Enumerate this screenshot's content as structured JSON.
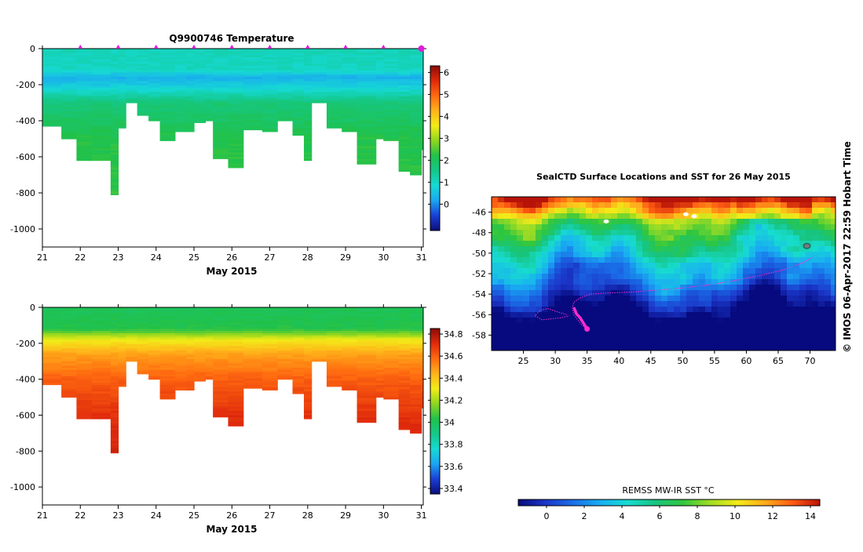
{
  "colors": {
    "profile_ramp": [
      "#0b0c7a",
      "#1a3fd6",
      "#1aa6f0",
      "#16d9d4",
      "#14c889",
      "#21c14a",
      "#8fd61f",
      "#f2ec18",
      "#ffb21a",
      "#ff6a10",
      "#e02a0c",
      "#8b0c07"
    ],
    "sst_ramp": [
      "#060a7e",
      "#1b36c8",
      "#1a6fe8",
      "#19aef2",
      "#17dcd0",
      "#17c47e",
      "#2fc63f",
      "#9fdc24",
      "#f3ea18",
      "#ffab1c",
      "#ff5b12",
      "#b71308"
    ],
    "track": "#ff2bd0",
    "marker": "#e01ad8"
  },
  "chart_data": [
    {
      "type": "heatmap",
      "title": "Q9900746  Temperature",
      "xlabel": "May 2015",
      "ylabel": "",
      "xlim": [
        21,
        31.05
      ],
      "ylim": [
        -1100,
        0
      ],
      "xticks": [
        21,
        22,
        23,
        24,
        25,
        26,
        27,
        28,
        29,
        30,
        31
      ],
      "yticks": [
        0,
        -200,
        -400,
        -600,
        -800,
        -1000
      ],
      "colorbar": {
        "range": [
          -1.2,
          6.3
        ],
        "ticks": [
          0,
          1,
          2,
          3,
          4,
          5,
          6
        ]
      },
      "profile_times": [
        21.0,
        21.5,
        21.9,
        22.3,
        22.8,
        23.0,
        23.2,
        23.5,
        23.8,
        24.1,
        24.5,
        24.8,
        25.0,
        25.3,
        25.5,
        25.9,
        26.3,
        26.8,
        27.2,
        27.6,
        27.9,
        28.1,
        28.5,
        28.9,
        29.3,
        29.8,
        30.0,
        30.4,
        30.7,
        31.0
      ],
      "profile_depths": [
        430,
        500,
        620,
        620,
        810,
        440,
        300,
        370,
        400,
        510,
        460,
        460,
        410,
        400,
        610,
        660,
        450,
        460,
        400,
        480,
        620,
        300,
        440,
        460,
        640,
        500,
        510,
        680,
        700,
        560
      ],
      "surface_markers": [
        22,
        23,
        24,
        25,
        26,
        27,
        28,
        29,
        30,
        31
      ],
      "temperature_profile": [
        {
          "depth": 0,
          "value": 1.1
        },
        {
          "depth": 120,
          "value": 1.0
        },
        {
          "depth": 160,
          "value": 0.3
        },
        {
          "depth": 220,
          "value": 0.8
        },
        {
          "depth": 300,
          "value": 1.7
        },
        {
          "depth": 500,
          "value": 2.2
        },
        {
          "depth": 820,
          "value": 2.3
        }
      ]
    },
    {
      "type": "heatmap",
      "title": "",
      "xlabel": "May 2015",
      "ylabel": "",
      "xlim": [
        21,
        31.05
      ],
      "ylim": [
        -1100,
        0
      ],
      "xticks": [
        21,
        22,
        23,
        24,
        25,
        26,
        27,
        28,
        29,
        30,
        31
      ],
      "yticks": [
        0,
        -200,
        -400,
        -600,
        -800,
        -1000
      ],
      "colorbar": {
        "range": [
          33.35,
          34.85
        ],
        "ticks": [
          33.4,
          33.6,
          33.8,
          34,
          34.2,
          34.4,
          34.6,
          34.8
        ]
      },
      "colorbar_labels": [
        "33.4",
        "33.6",
        "33.8",
        "34",
        "34.2",
        "34.4",
        "34.6",
        "34.8"
      ],
      "salinity_profile": [
        {
          "depth": 0,
          "value": 34.0
        },
        {
          "depth": 120,
          "value": 34.03
        },
        {
          "depth": 180,
          "value": 34.3
        },
        {
          "depth": 260,
          "value": 34.47
        },
        {
          "depth": 400,
          "value": 34.6
        },
        {
          "depth": 600,
          "value": 34.7
        },
        {
          "depth": 820,
          "value": 34.74
        }
      ]
    },
    {
      "type": "heatmap",
      "title": "SealCTD Surface Locations and SST for 26 May 2015",
      "xlabel": "",
      "ylabel": "",
      "xlim": [
        20,
        74
      ],
      "ylim": [
        -59.5,
        -44.5
      ],
      "xticks": [
        25,
        30,
        35,
        40,
        45,
        50,
        55,
        60,
        65,
        70
      ],
      "yticks": [
        -46,
        -48,
        -50,
        -52,
        -54,
        -56,
        -58
      ],
      "colorbar": {
        "label": "REMSS MW-IR SST °C",
        "range": [
          -1.5,
          14.5
        ],
        "ticks": [
          0,
          2,
          4,
          6,
          8,
          10,
          12,
          14
        ]
      },
      "track": [
        [
          34.7,
          -57.3
        ],
        [
          34.0,
          -56.9
        ],
        [
          33.4,
          -56.4
        ],
        [
          32.9,
          -56.0
        ],
        [
          32.7,
          -55.4
        ],
        [
          32.9,
          -54.8
        ],
        [
          33.8,
          -54.4
        ],
        [
          35.5,
          -54.0
        ],
        [
          38.0,
          -53.9
        ],
        [
          42.0,
          -53.8
        ],
        [
          46.0,
          -53.6
        ],
        [
          50.0,
          -53.4
        ],
        [
          54.0,
          -53.1
        ],
        [
          58.0,
          -52.7
        ],
        [
          62.0,
          -52.2
        ],
        [
          66.0,
          -51.6
        ],
        [
          69.0,
          -50.9
        ],
        [
          70.5,
          -50.4
        ]
      ],
      "track_loop": [
        [
          31.8,
          -56.0
        ],
        [
          30.2,
          -55.7
        ],
        [
          28.8,
          -55.4
        ],
        [
          27.6,
          -55.6
        ],
        [
          26.8,
          -56.1
        ],
        [
          27.9,
          -56.5
        ],
        [
          29.5,
          -56.4
        ],
        [
          31.0,
          -56.3
        ],
        [
          32.2,
          -56.1
        ]
      ],
      "track_bold": [
        [
          33.0,
          -55.4
        ],
        [
          33.3,
          -55.9
        ],
        [
          33.9,
          -56.3
        ],
        [
          34.4,
          -56.8
        ],
        [
          34.9,
          -57.3
        ]
      ],
      "final_position": [
        35.0,
        -57.4
      ]
    }
  ],
  "side_text": "© IMOS 06-Apr-2017 22:59 Hobart Time"
}
